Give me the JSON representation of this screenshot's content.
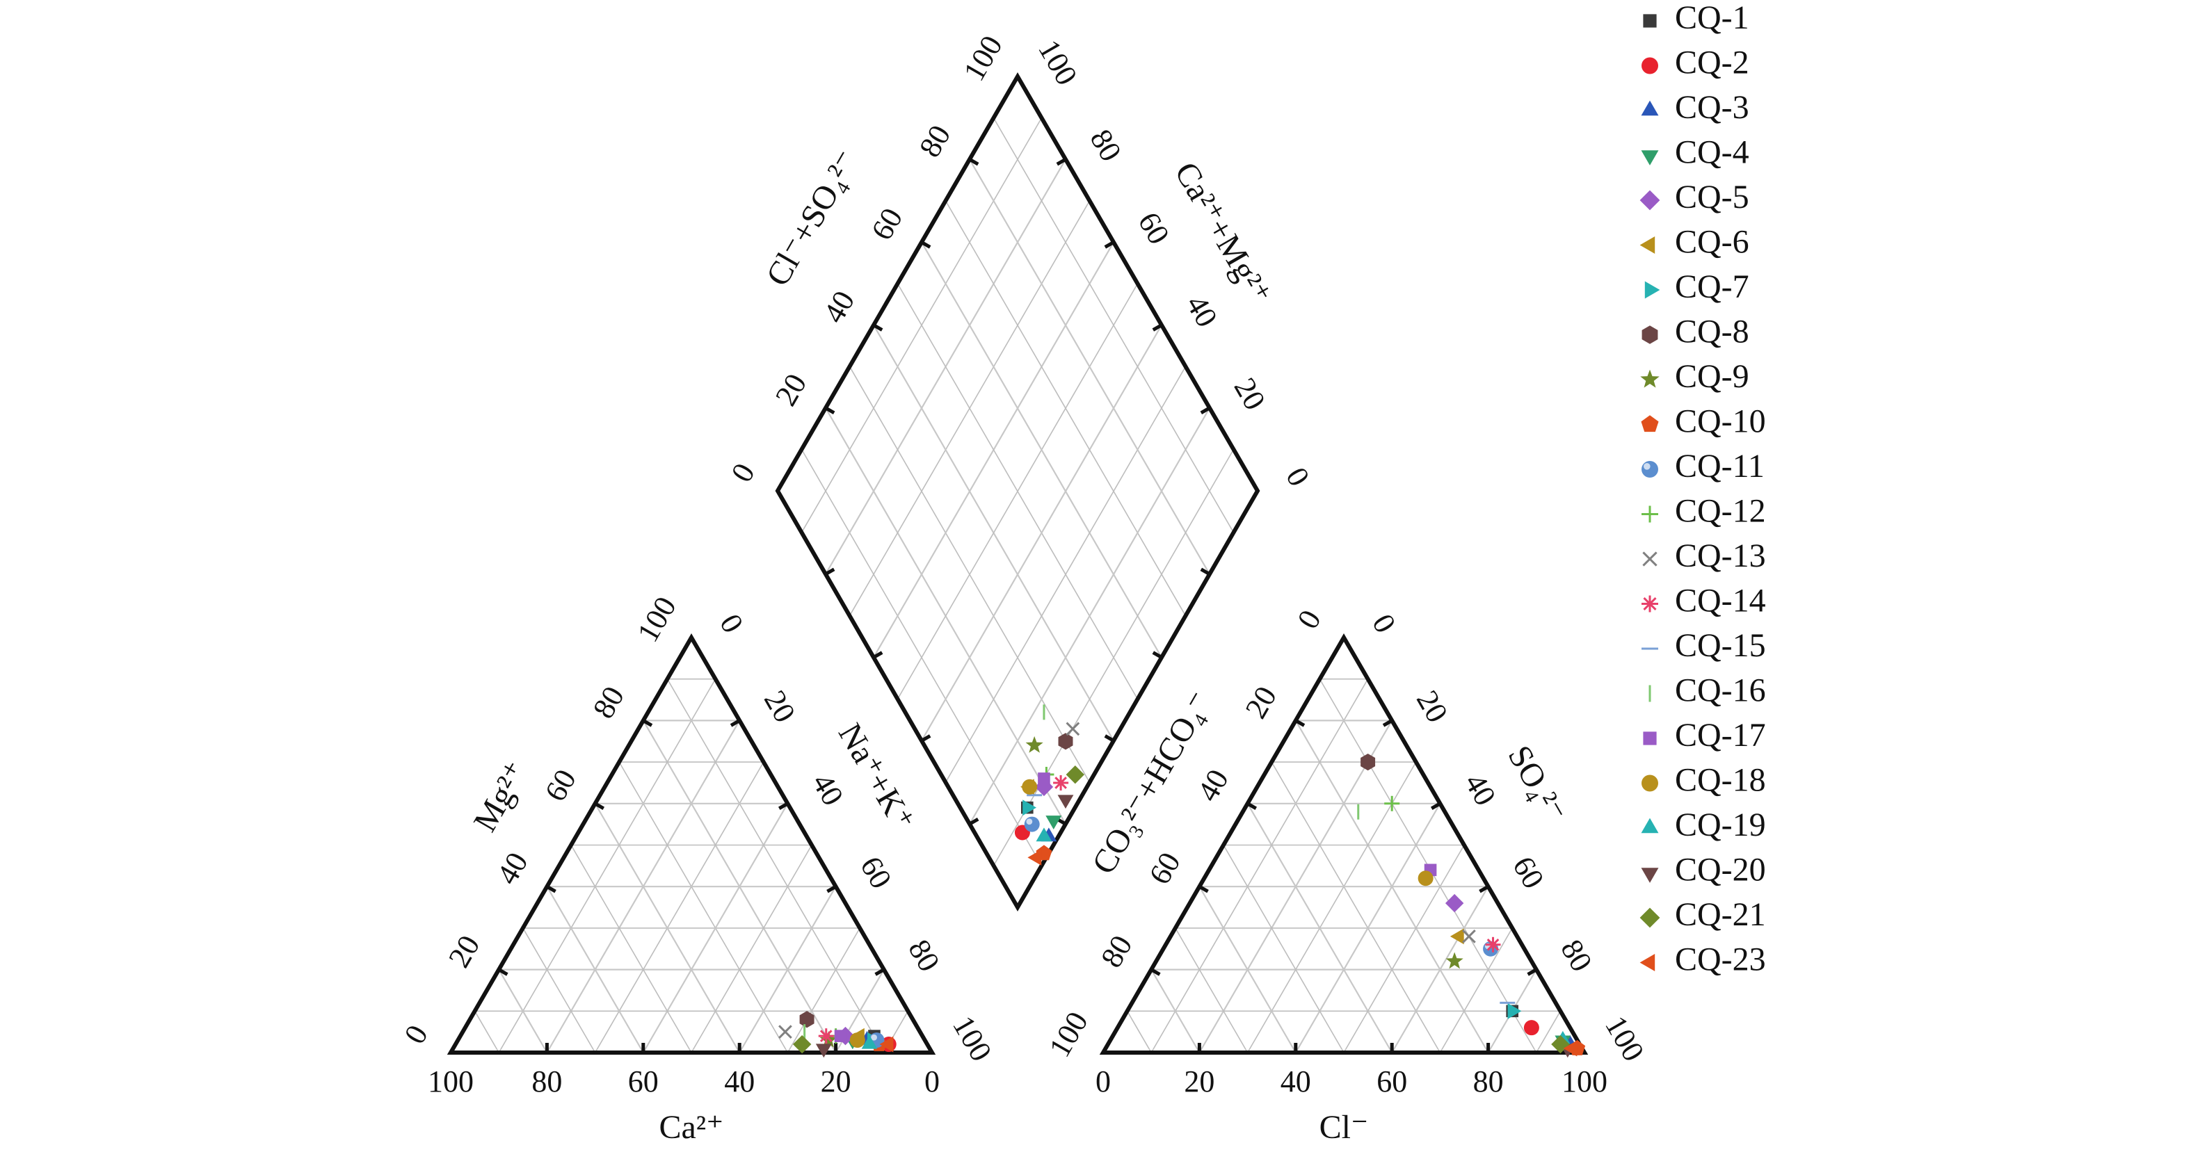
{
  "chart_data": {
    "type": "scatter",
    "subtype": "piper-trilinear",
    "grid": true,
    "legend_position": "right",
    "axes": {
      "cation_triangle": {
        "bottom_label": "Ca²⁺",
        "left_label": "Mg²⁺",
        "right_label": "Na⁺+K⁺",
        "bottom_ticks": [
          "100",
          "80",
          "60",
          "40",
          "20",
          "0"
        ],
        "left_ticks": [
          "0",
          "20",
          "40",
          "60",
          "80",
          "100"
        ],
        "right_ticks": [
          "0",
          "20",
          "40",
          "60",
          "80",
          "100"
        ]
      },
      "anion_triangle": {
        "bottom_label": "Cl⁻",
        "left_label": "CO₃²⁻+HCO₄⁻",
        "right_label": "SO₄²⁻",
        "bottom_ticks": [
          "0",
          "20",
          "40",
          "60",
          "80",
          "100"
        ],
        "left_ticks": [
          "100",
          "80",
          "60",
          "40",
          "20",
          "0"
        ],
        "right_ticks": [
          "0",
          "20",
          "40",
          "60",
          "80",
          "100"
        ]
      },
      "diamond": {
        "left_label": "Cl⁻+SO₄²⁻",
        "right_label": "Ca²⁺+Mg²⁺",
        "left_ticks": [
          "0",
          "20",
          "40",
          "60",
          "80",
          "100"
        ],
        "right_ticks": [
          "0",
          "20",
          "40",
          "60",
          "80",
          "100"
        ]
      }
    },
    "series": [
      {
        "name": "CQ-1",
        "marker": "square",
        "color": "#3a3a3a",
        "ca": 10,
        "mg": 4,
        "na_k": 86,
        "cl": 80,
        "so4": 10,
        "hco3": 10
      },
      {
        "name": "CQ-2",
        "marker": "circle",
        "color": "#e8222e",
        "ca": 8,
        "mg": 2,
        "na_k": 90,
        "cl": 86,
        "so4": 6,
        "hco3": 8
      },
      {
        "name": "CQ-3",
        "marker": "triangle",
        "color": "#2a56b8",
        "ca": 12,
        "mg": 3,
        "na_k": 85,
        "cl": 96,
        "so4": 2,
        "hco3": 2
      },
      {
        "name": "CQ-4",
        "marker": "tri-down",
        "color": "#2f9e6a",
        "ca": 15,
        "mg": 3,
        "na_k": 82,
        "cl": 94,
        "so4": 3,
        "hco3": 3
      },
      {
        "name": "CQ-5",
        "marker": "diamond",
        "color": "#9a5bc6",
        "ca": 16,
        "mg": 4,
        "na_k": 80,
        "cl": 55,
        "so4": 36,
        "hco3": 9
      },
      {
        "name": "CQ-6",
        "marker": "tri-left",
        "color": "#b8901c",
        "ca": 13,
        "mg": 4,
        "na_k": 83,
        "cl": 60,
        "so4": 28,
        "hco3": 12
      },
      {
        "name": "CQ-7",
        "marker": "tri-right",
        "color": "#26b2b2",
        "ca": 11,
        "mg": 3,
        "na_k": 86,
        "cl": 80,
        "so4": 10,
        "hco3": 10
      },
      {
        "name": "CQ-8",
        "marker": "hexagon",
        "color": "#6b4545",
        "ca": 22,
        "mg": 8,
        "na_k": 70,
        "cl": 20,
        "so4": 70,
        "hco3": 10
      },
      {
        "name": "CQ-9",
        "marker": "star",
        "color": "#6f8a2a",
        "ca": 20,
        "mg": 3,
        "na_k": 77,
        "cl": 62,
        "so4": 22,
        "hco3": 16
      },
      {
        "name": "CQ-10",
        "marker": "pentagon",
        "color": "#e04f1c",
        "ca": 10,
        "mg": 2,
        "na_k": 88,
        "cl": 98,
        "so4": 1,
        "hco3": 1
      },
      {
        "name": "CQ-11",
        "marker": "sphere",
        "color": "#5b8ecf",
        "ca": 10,
        "mg": 3,
        "na_k": 87,
        "cl": 68,
        "so4": 25,
        "hco3": 7
      },
      {
        "name": "CQ-12",
        "marker": "plus",
        "color": "#6cbf4a",
        "ca": 18,
        "mg": 4,
        "na_k": 78,
        "cl": 30,
        "so4": 60,
        "hco3": 10
      },
      {
        "name": "CQ-13",
        "marker": "cross",
        "color": "#808080",
        "ca": 28,
        "mg": 5,
        "na_k": 67,
        "cl": 62,
        "so4": 28,
        "hco3": 10
      },
      {
        "name": "CQ-14",
        "marker": "asterisk",
        "color": "#e8406a",
        "ca": 20,
        "mg": 4,
        "na_k": 76,
        "cl": 68,
        "so4": 26,
        "hco3": 6
      },
      {
        "name": "CQ-15",
        "marker": "hline",
        "color": "#7aa0d6",
        "ca": 14,
        "mg": 3,
        "na_k": 83,
        "cl": 78,
        "so4": 12,
        "hco3": 10
      },
      {
        "name": "CQ-16",
        "marker": "vline",
        "color": "#7fc870",
        "ca": 24,
        "mg": 5,
        "na_k": 71,
        "cl": 24,
        "so4": 58,
        "hco3": 18
      },
      {
        "name": "CQ-17",
        "marker": "square",
        "color": "#9a5bc6",
        "ca": 17,
        "mg": 4,
        "na_k": 79,
        "cl": 46,
        "so4": 44,
        "hco3": 10
      },
      {
        "name": "CQ-18",
        "marker": "circle",
        "color": "#b8901c",
        "ca": 14,
        "mg": 3,
        "na_k": 83,
        "cl": 46,
        "so4": 42,
        "hco3": 12
      },
      {
        "name": "CQ-19",
        "marker": "triangle",
        "color": "#26b2b2",
        "ca": 12,
        "mg": 2,
        "na_k": 86,
        "cl": 94,
        "so4": 3,
        "hco3": 3
      },
      {
        "name": "CQ-20",
        "marker": "tri-down",
        "color": "#6b4545",
        "ca": 22,
        "mg": 1,
        "na_k": 77,
        "cl": 96,
        "so4": 1,
        "hco3": 3
      },
      {
        "name": "CQ-21",
        "marker": "diamond",
        "color": "#6f8a2a",
        "ca": 26,
        "mg": 2,
        "na_k": 72,
        "cl": 94,
        "so4": 2,
        "hco3": 4
      },
      {
        "name": "CQ-23",
        "marker": "tri-left",
        "color": "#e04f1c",
        "ca": 8,
        "mg": 2,
        "na_k": 90,
        "cl": 97,
        "so4": 1,
        "hco3": 2
      }
    ]
  }
}
